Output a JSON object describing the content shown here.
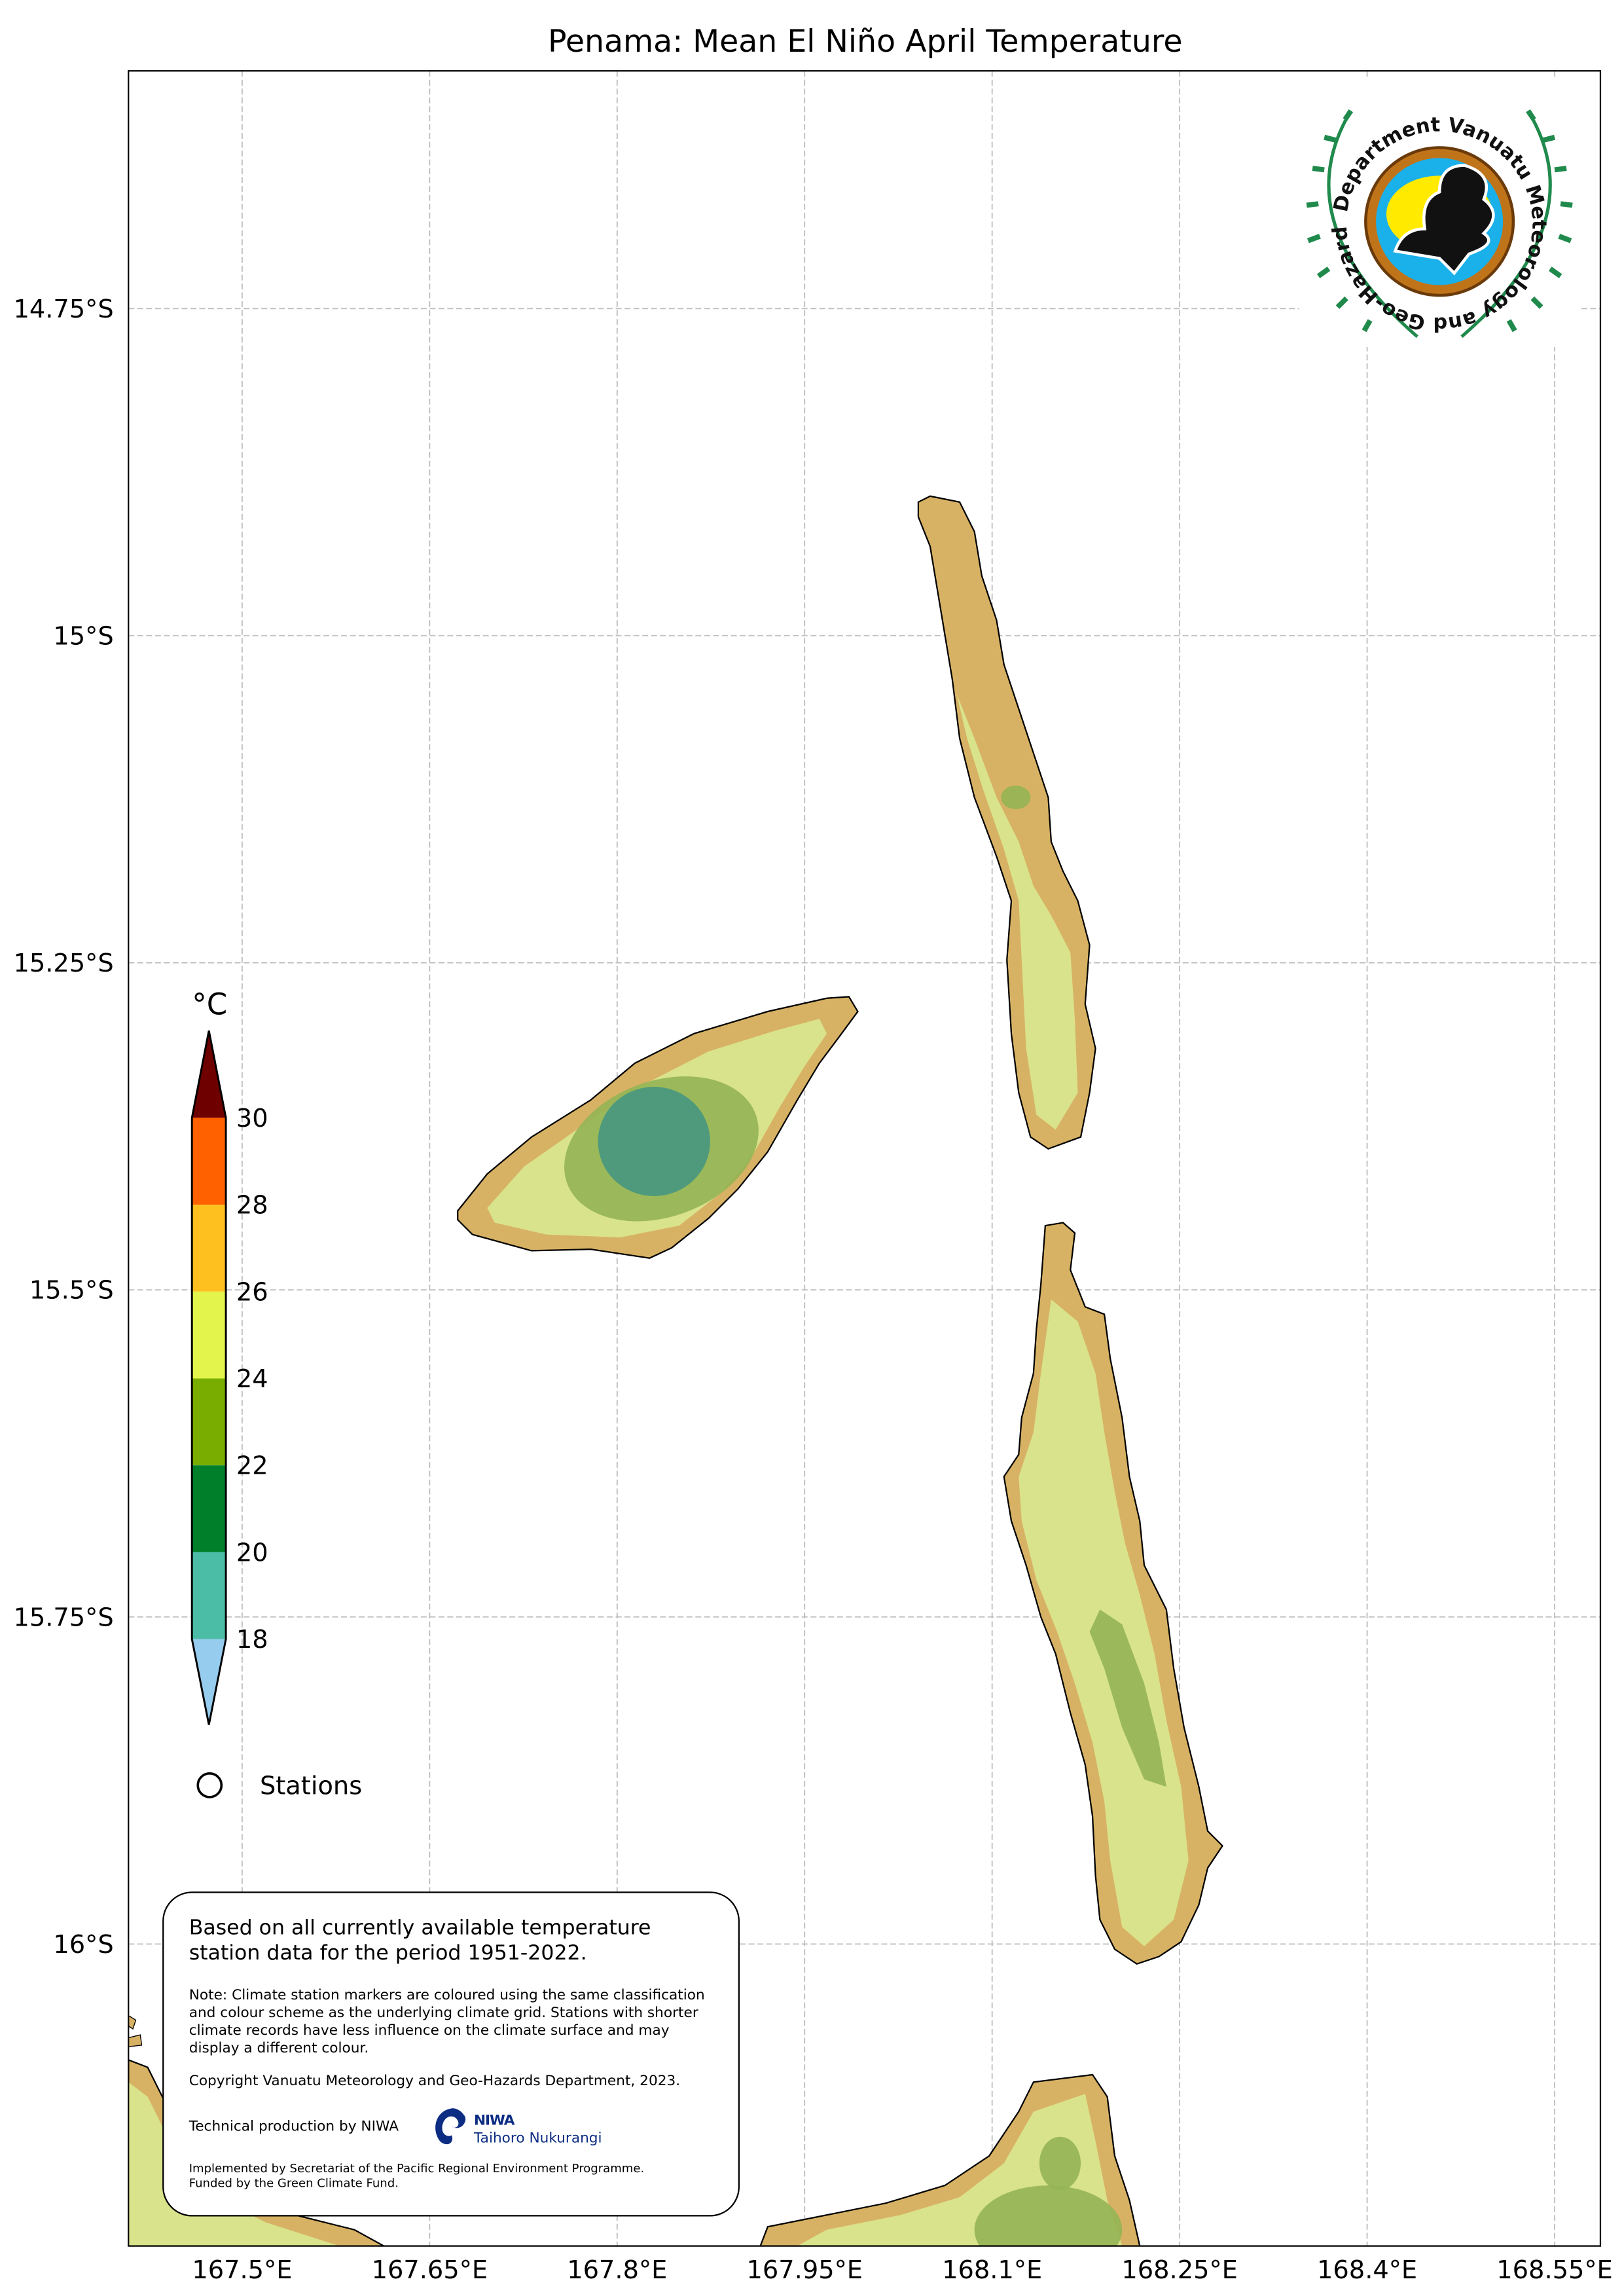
{
  "title": "Penama: Mean El Niño April Temperature",
  "map": {
    "lon_ticks": [
      {
        "value": 167.5,
        "label": "167.5°E"
      },
      {
        "value": 167.65,
        "label": "167.65°E"
      },
      {
        "value": 167.8,
        "label": "167.8°E"
      },
      {
        "value": 167.95,
        "label": "167.95°E"
      },
      {
        "value": 168.1,
        "label": "168.1°E"
      },
      {
        "value": 168.25,
        "label": "168.25°E"
      },
      {
        "value": 168.4,
        "label": "168.4°E"
      },
      {
        "value": 168.55,
        "label": "168.55°E"
      }
    ],
    "lat_ticks": [
      {
        "value": 14.75,
        "label": "14.75°S"
      },
      {
        "value": 15.0,
        "label": "15°S"
      },
      {
        "value": 15.25,
        "label": "15.25°S"
      },
      {
        "value": 15.5,
        "label": "15.5°S"
      },
      {
        "value": 15.75,
        "label": "15.75°S"
      },
      {
        "value": 16.0,
        "label": "16°S"
      }
    ],
    "grid": true,
    "land_colors": {
      "coast_band": "#d8b264",
      "lowland": "#d9e38c",
      "upland": "#93b454",
      "peak": "#4f9a7c"
    }
  },
  "colorbar": {
    "unit": "°C",
    "ticks": [
      "30",
      "28",
      "26",
      "24",
      "22",
      "20",
      "18"
    ],
    "bins": [
      {
        "range": "28-30",
        "color": "#ff6000"
      },
      {
        "range": "26-28",
        "color": "#fec01e"
      },
      {
        "range": "24-26",
        "color": "#e3f44c"
      },
      {
        "range": "22-24",
        "color": "#79ae00"
      },
      {
        "range": "20-22",
        "color": "#007f2a"
      },
      {
        "range": "18-20",
        "color": "#4bbca6"
      }
    ],
    "over_color": "#6e0000",
    "under_color": "#96ccee"
  },
  "legend": {
    "stations_label": "Stations",
    "marker_icon": "circle-icon"
  },
  "info": {
    "summary": "Based on all currently available temperature station data for the period 1951-2022.",
    "note": "Note: Climate station markers are coloured using the same classification and colour scheme as the underlying climate grid. Stations with shorter climate records have less influence on the climate surface and may display a different colour.",
    "copyright": "Copyright Vanuatu Meteorology and Geo-Hazards Department, 2023.",
    "technical": "Technical production by NIWA",
    "niwa_logo_text": "NIWA",
    "niwa_logo_subtext": "Taihoro Nukurangi",
    "implemented": "Implemented by Secretariat of the Pacific Regional Environment Programme.",
    "funded": "Funded by the Green Climate Fund."
  },
  "logo": {
    "text": "Department Vanuatu Meteorology and Geo-Hazards"
  }
}
